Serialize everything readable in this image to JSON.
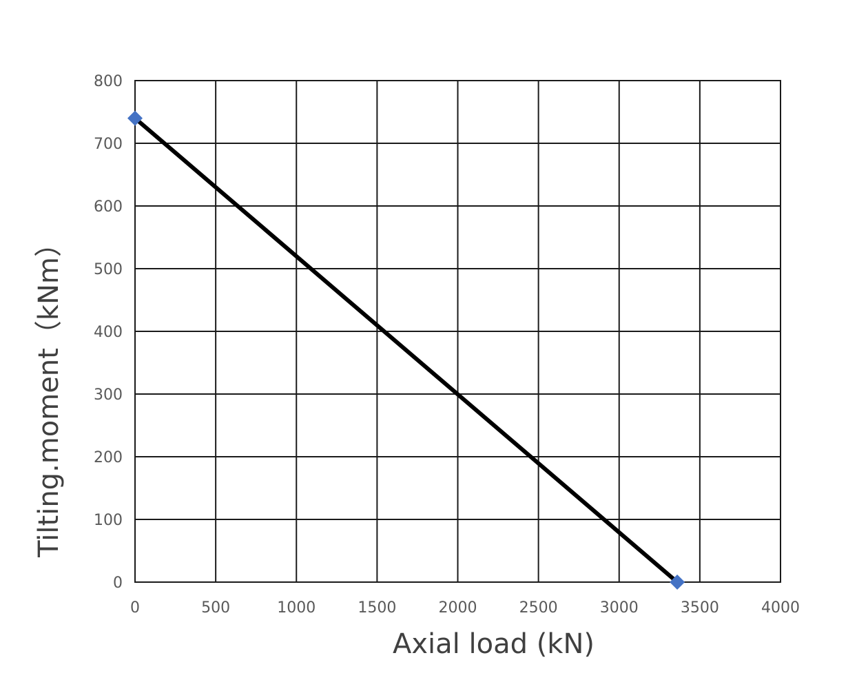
{
  "chart_data": {
    "type": "line",
    "title": "",
    "xlabel": "Axial load (kN)",
    "ylabel": "Tilting.moment（kNm）",
    "xlim": [
      0,
      4000
    ],
    "ylim": [
      0,
      800
    ],
    "x_ticks": [
      "0",
      "500",
      "1000",
      "1500",
      "2000",
      "2500",
      "3000",
      "3500",
      "4000"
    ],
    "y_ticks": [
      "0",
      "100",
      "200",
      "300",
      "400",
      "500",
      "600",
      "700",
      "800"
    ],
    "grid": true,
    "legend": "none",
    "series": [
      {
        "x": [
          0,
          3360
        ],
        "y": [
          740,
          0
        ],
        "line_color": "#000000",
        "marker": "diamond",
        "marker_color": "#4472C4"
      }
    ]
  }
}
